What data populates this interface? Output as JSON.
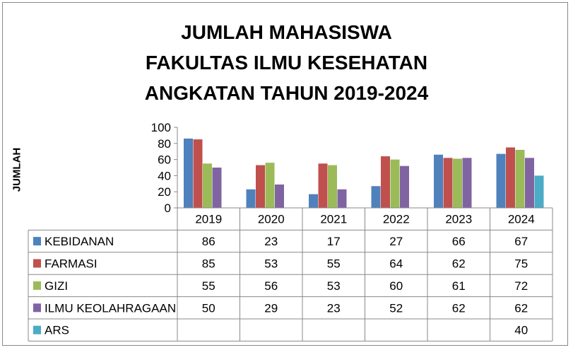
{
  "chart_data": {
    "type": "bar",
    "title_lines": [
      "JUMLAH MAHASISWA",
      "FAKULTAS ILMU KESEHATAN",
      "ANGKATAN TAHUN 2019-2024"
    ],
    "ylabel": "JUMLAH",
    "xlabel": "",
    "ylim": [
      0,
      100
    ],
    "yticks": [
      0,
      20,
      40,
      60,
      80,
      100
    ],
    "grid": false,
    "legend": "data-table",
    "categories": [
      "2019",
      "2020",
      "2021",
      "2022",
      "2023",
      "2024"
    ],
    "series": [
      {
        "name": "KEBIDANAN",
        "color": "#4F81BD",
        "values": [
          86,
          23,
          17,
          27,
          66,
          67
        ]
      },
      {
        "name": "FARMASI",
        "color": "#C0504D",
        "values": [
          85,
          53,
          55,
          64,
          62,
          75
        ]
      },
      {
        "name": "GIZI",
        "color": "#9BBB59",
        "values": [
          55,
          56,
          53,
          60,
          61,
          72
        ]
      },
      {
        "name": "ILMU KEOLAHRAGAAN",
        "color": "#8064A2",
        "values": [
          50,
          29,
          23,
          52,
          62,
          62
        ]
      },
      {
        "name": "ARS",
        "color": "#4BACC6",
        "values": [
          null,
          null,
          null,
          null,
          null,
          40
        ]
      }
    ]
  }
}
